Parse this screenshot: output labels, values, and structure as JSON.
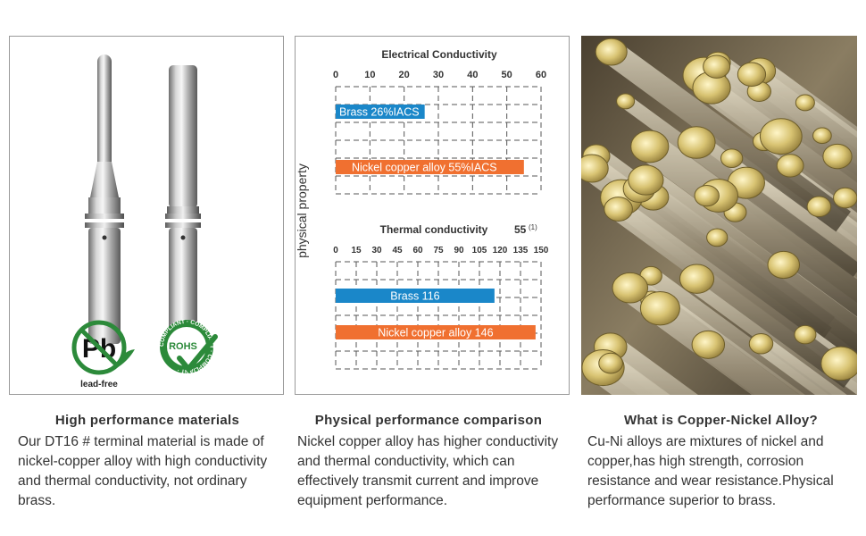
{
  "panels": [
    {
      "caption_title": "High performance materials",
      "caption_body": "Our DT16 # terminal material is made of nickel-copper alloy with high conductivity and thermal conductivity, not ordinary brass.",
      "badges": {
        "pb_symbol": "Pb",
        "lead_free_label": "lead-free",
        "rohs_label": "ROHS",
        "rohs_ring_text": "COMPLIANT · COMPLIANT · COMPLIANT ·"
      }
    },
    {
      "caption_title": "Physical performance comparison",
      "caption_body": "Nickel copper alloy has higher conductivity and thermal conductivity, which can effectively transmit current and improve equipment performance."
    },
    {
      "caption_title": "What is Copper-Nickel Alloy?",
      "caption_body": "Cu-Ni alloys are mixtures of nickel and copper,has high strength, corrosion resistance and wear resistance.Physical performance superior to brass."
    }
  ],
  "colors": {
    "brass_bar": "#1a87c9",
    "nickel_bar": "#f07030",
    "grid": "#555555"
  },
  "chart_data": [
    {
      "type": "bar",
      "orientation": "horizontal",
      "title": "Electrical Conductivity",
      "ylabel": "physical property",
      "xticks": [
        "0",
        "10",
        "20",
        "30",
        "40",
        "50",
        "60"
      ],
      "xlim": [
        0,
        60
      ],
      "categories": [
        "Brass",
        "Nickel copper alloy"
      ],
      "values": [
        26,
        55
      ],
      "bar_labels": [
        "Brass  26%IACS",
        "Nickel copper alloy  55%IACS"
      ],
      "bar_colors": [
        "#1a87c9",
        "#f07030"
      ],
      "grid": true
    },
    {
      "type": "bar",
      "orientation": "horizontal",
      "title": "Thermal conductivity",
      "title_note": "55",
      "title_note_sup": "(1)",
      "xticks": [
        "0",
        "15",
        "30",
        "45",
        "60",
        "75",
        "90",
        "105",
        "120",
        "135",
        "150"
      ],
      "xlim": [
        0,
        150
      ],
      "categories": [
        "Brass",
        "Nickel copper alloy"
      ],
      "values": [
        116,
        146
      ],
      "bar_labels": [
        "Brass 116",
        "Nickel copper alloy 146"
      ],
      "bar_colors": [
        "#1a87c9",
        "#f07030"
      ],
      "grid": true
    }
  ]
}
